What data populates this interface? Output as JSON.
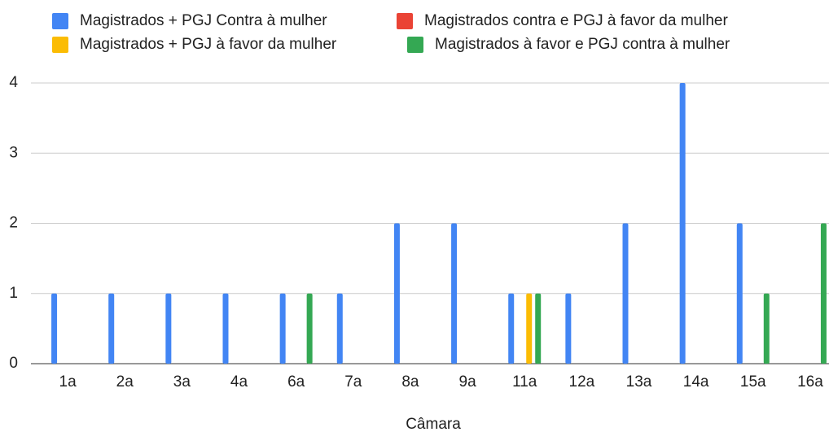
{
  "chart_data": {
    "type": "bar",
    "x_label": "Câmara",
    "categories": [
      "1a",
      "2a",
      "3a",
      "4a",
      "6a",
      "7a",
      "8a",
      "9a",
      "11a",
      "12a",
      "13a",
      "14a",
      "15a",
      "16a"
    ],
    "series": [
      {
        "name": "Magistrados + PGJ Contra à mulher",
        "color": "#4285f4",
        "values": [
          1,
          1,
          1,
          1,
          1,
          1,
          2,
          2,
          1,
          1,
          2,
          4,
          2,
          0
        ]
      },
      {
        "name": "Magistrados contra e PGJ à favor da mulher",
        "color": "#ea4335",
        "values": [
          0,
          0,
          0,
          0,
          0,
          0,
          0,
          0,
          0,
          0,
          0,
          0,
          0,
          0
        ]
      },
      {
        "name": "Magistrados + PGJ à favor da mulher",
        "color": "#fbbc04",
        "values": [
          0,
          0,
          0,
          0,
          0,
          0,
          0,
          0,
          1,
          0,
          0,
          0,
          0,
          0
        ]
      },
      {
        "name": "Magistrados à favor e PGJ contra à mulher",
        "color": "#34a853",
        "values": [
          0,
          0,
          0,
          0,
          1,
          0,
          0,
          0,
          1,
          0,
          0,
          0,
          1,
          2
        ]
      }
    ],
    "ylim": [
      0,
      4
    ],
    "yticks": [
      0,
      1,
      2,
      3,
      4
    ],
    "grid": true,
    "legend": "top"
  }
}
